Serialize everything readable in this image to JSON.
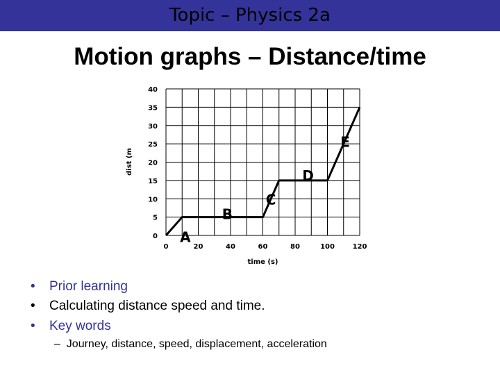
{
  "banner": {
    "title": "Topic – Physics 2a"
  },
  "slide": {
    "title": "Motion graphs – Distance/time"
  },
  "chart_data": {
    "type": "line",
    "xlabel": "time (s)",
    "ylabel": "dist (m",
    "xlim": [
      0,
      120
    ],
    "ylim": [
      0,
      40
    ],
    "xticks": [
      0,
      20,
      40,
      60,
      80,
      100,
      120
    ],
    "yticks": [
      0,
      5,
      10,
      15,
      20,
      25,
      30,
      35,
      40
    ],
    "grid": true,
    "series": [
      {
        "name": "distance",
        "x": [
          0,
          10,
          60,
          70,
          100,
          120
        ],
        "y": [
          0,
          5,
          5,
          15,
          15,
          35
        ]
      }
    ],
    "annotations": [
      {
        "text": "A",
        "x": 12,
        "y": -0.5
      },
      {
        "text": "B",
        "x": 38,
        "y": 5.8
      },
      {
        "text": "C",
        "x": 65,
        "y": 9.8
      },
      {
        "text": "D",
        "x": 88,
        "y": 16.3
      },
      {
        "text": "E",
        "x": 111,
        "y": 25.5
      }
    ]
  },
  "bullets": [
    {
      "text": "Prior learning",
      "color": "#333399"
    },
    {
      "text": "Calculating distance speed and time.",
      "color": "#000000"
    },
    {
      "text": "Key words",
      "color": "#333399"
    }
  ],
  "sub_bullet": {
    "dash": "–",
    "text": "Journey, distance, speed, displacement, acceleration"
  }
}
